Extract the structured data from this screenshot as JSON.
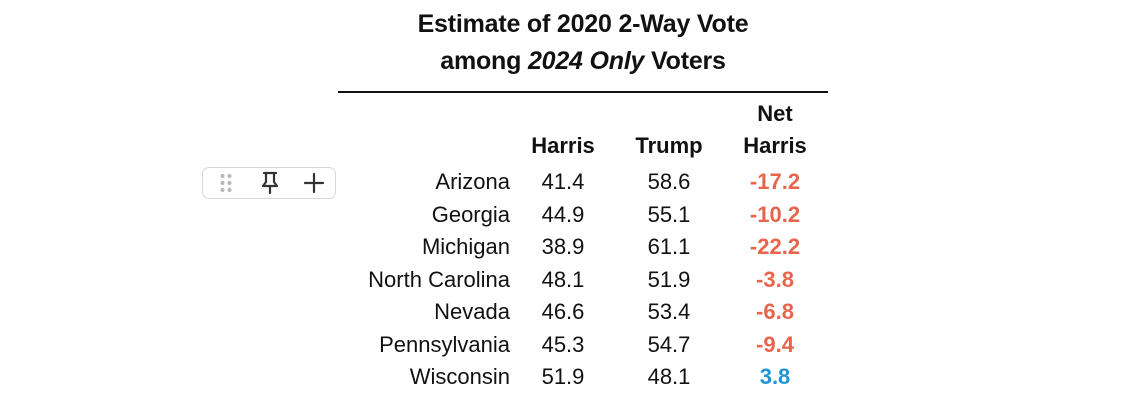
{
  "title": {
    "line1": "Estimate of 2020 2-Way Vote",
    "line2_prefix": "among ",
    "line2_emphasis": "2024 Only",
    "line2_suffix": " Voters"
  },
  "columns": {
    "harris": "Harris",
    "trump": "Trump",
    "net_line1": "Net",
    "net_line2": "Harris"
  },
  "rows": [
    {
      "state": "Arizona",
      "harris": "41.4",
      "trump": "58.6",
      "net": "-17.2"
    },
    {
      "state": "Georgia",
      "harris": "44.9",
      "trump": "55.1",
      "net": "-10.2"
    },
    {
      "state": "Michigan",
      "harris": "38.9",
      "trump": "61.1",
      "net": "-22.2"
    },
    {
      "state": "North Carolina",
      "harris": "48.1",
      "trump": "51.9",
      "net": "-3.8"
    },
    {
      "state": "Nevada",
      "harris": "46.6",
      "trump": "53.4",
      "net": "-6.8"
    },
    {
      "state": "Pennsylvania",
      "harris": "45.3",
      "trump": "54.7",
      "net": "-9.4"
    },
    {
      "state": "Wisconsin",
      "harris": "51.9",
      "trump": "48.1",
      "net": "3.8"
    }
  ],
  "colors": {
    "negative": "#e8644a",
    "positive": "#1f95d2",
    "text": "#111111",
    "rule": "#111111",
    "toolbar_border": "#d6d6d6",
    "icon": "#333333",
    "drag_dots": "#b8b8b8"
  },
  "toolbar": {
    "icons": [
      "drag-handle-icon",
      "pin-icon",
      "plus-icon"
    ]
  }
}
